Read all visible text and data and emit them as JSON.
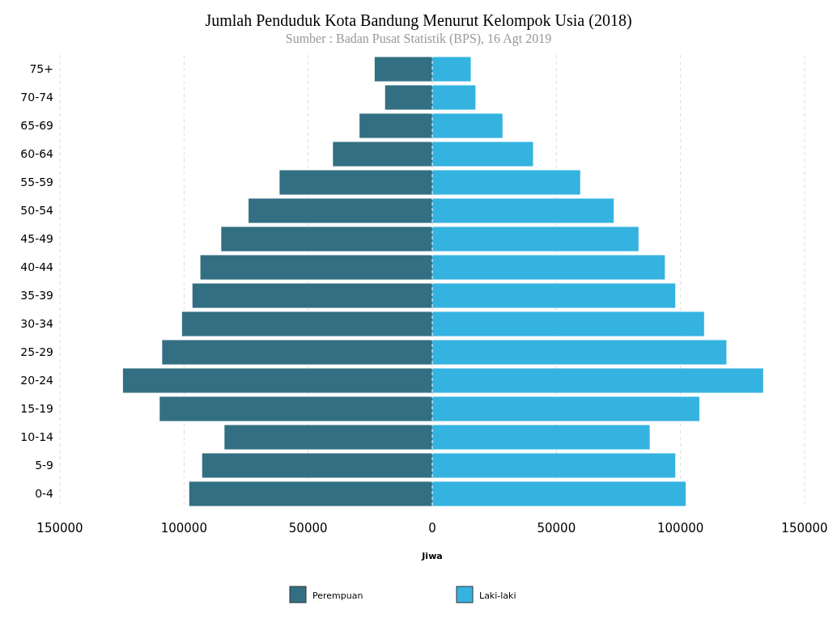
{
  "chart_data": {
    "type": "bar",
    "orientation": "horizontal",
    "stacked": true,
    "title": "Jumlah Penduduk Kota Bandung Menurut Kelompok Usia (2018)",
    "subtitle": "Sumber : Badan Pusat Statistik (BPS), 16 Agt 2019",
    "xlabel": "Jiwa",
    "categories": [
      "75+",
      "70-74",
      "65-69",
      "60-64",
      "55-59",
      "50-54",
      "45-49",
      "40-44",
      "35-39",
      "30-34",
      "25-29",
      "20-24",
      "15-19",
      "10-14",
      "5-9",
      "0-4"
    ],
    "series": [
      {
        "name": "Perempuan",
        "color": "#336f82",
        "values": [
          -23200,
          -19000,
          -29300,
          -40000,
          -61500,
          -74000,
          -85000,
          -93400,
          -96600,
          -100800,
          -108800,
          -124600,
          -109800,
          -83700,
          -92700,
          -97900
        ]
      },
      {
        "name": "Laki-laki",
        "color": "#35b3e0",
        "values": [
          15500,
          17400,
          28300,
          40600,
          59600,
          73100,
          83100,
          93700,
          97900,
          109500,
          118500,
          133300,
          107600,
          87600,
          97900,
          102100
        ]
      }
    ],
    "xlim": [
      -150000,
      150000
    ],
    "xticks": [
      {
        "value": -150000,
        "label": "150000"
      },
      {
        "value": -100000,
        "label": "100000"
      },
      {
        "value": -50000,
        "label": "50000"
      },
      0,
      50000,
      100000,
      150000
    ],
    "ref_lines": [
      {
        "axis": "x",
        "value": 0,
        "color": "#ffffff",
        "line_style": "dashed"
      }
    ],
    "grid": "x",
    "legend": "bottom"
  }
}
